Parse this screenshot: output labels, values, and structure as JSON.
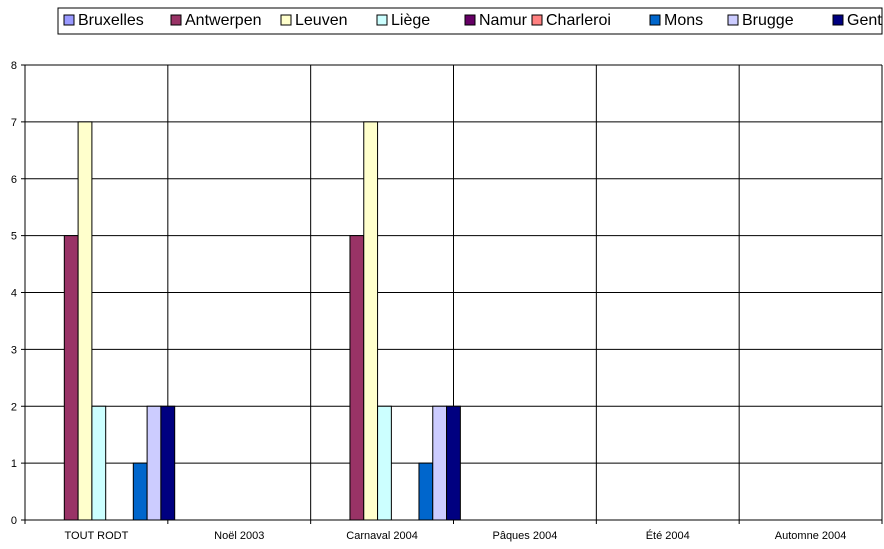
{
  "chart_data": {
    "type": "bar",
    "title": "",
    "xlabel": "",
    "ylabel": "",
    "ylim": [
      0,
      8
    ],
    "yticks": [
      0,
      1,
      2,
      3,
      4,
      5,
      6,
      7,
      8
    ],
    "grid": true,
    "legend_position": "top",
    "categories": [
      "TOUT RODT",
      "Noël 2003",
      "Carnaval 2004",
      "Pâques 2004",
      "Été 2004",
      "Automne 2004"
    ],
    "series": [
      {
        "name": "Bruxelles",
        "color": "#9999FF",
        "values": [
          0,
          0,
          0,
          0,
          0,
          0
        ]
      },
      {
        "name": "Antwerpen",
        "color": "#993366",
        "values": [
          5,
          0,
          5,
          0,
          0,
          0
        ]
      },
      {
        "name": "Leuven",
        "color": "#FFFFCC",
        "values": [
          7,
          0,
          7,
          0,
          0,
          0
        ]
      },
      {
        "name": "Liège",
        "color": "#CCFFFF",
        "values": [
          2,
          0,
          2,
          0,
          0,
          0
        ]
      },
      {
        "name": "Namur",
        "color": "#660066",
        "values": [
          0,
          0,
          0,
          0,
          0,
          0
        ]
      },
      {
        "name": "Charleroi",
        "color": "#FF8080",
        "values": [
          0,
          0,
          0,
          0,
          0,
          0
        ]
      },
      {
        "name": "Mons",
        "color": "#0066CC",
        "values": [
          1,
          0,
          1,
          0,
          0,
          0
        ]
      },
      {
        "name": "Brugge",
        "color": "#CCCCFF",
        "values": [
          2,
          0,
          2,
          0,
          0,
          0
        ]
      },
      {
        "name": "Gent",
        "color": "#000080",
        "values": [
          2,
          0,
          2,
          0,
          0,
          0
        ]
      }
    ]
  }
}
